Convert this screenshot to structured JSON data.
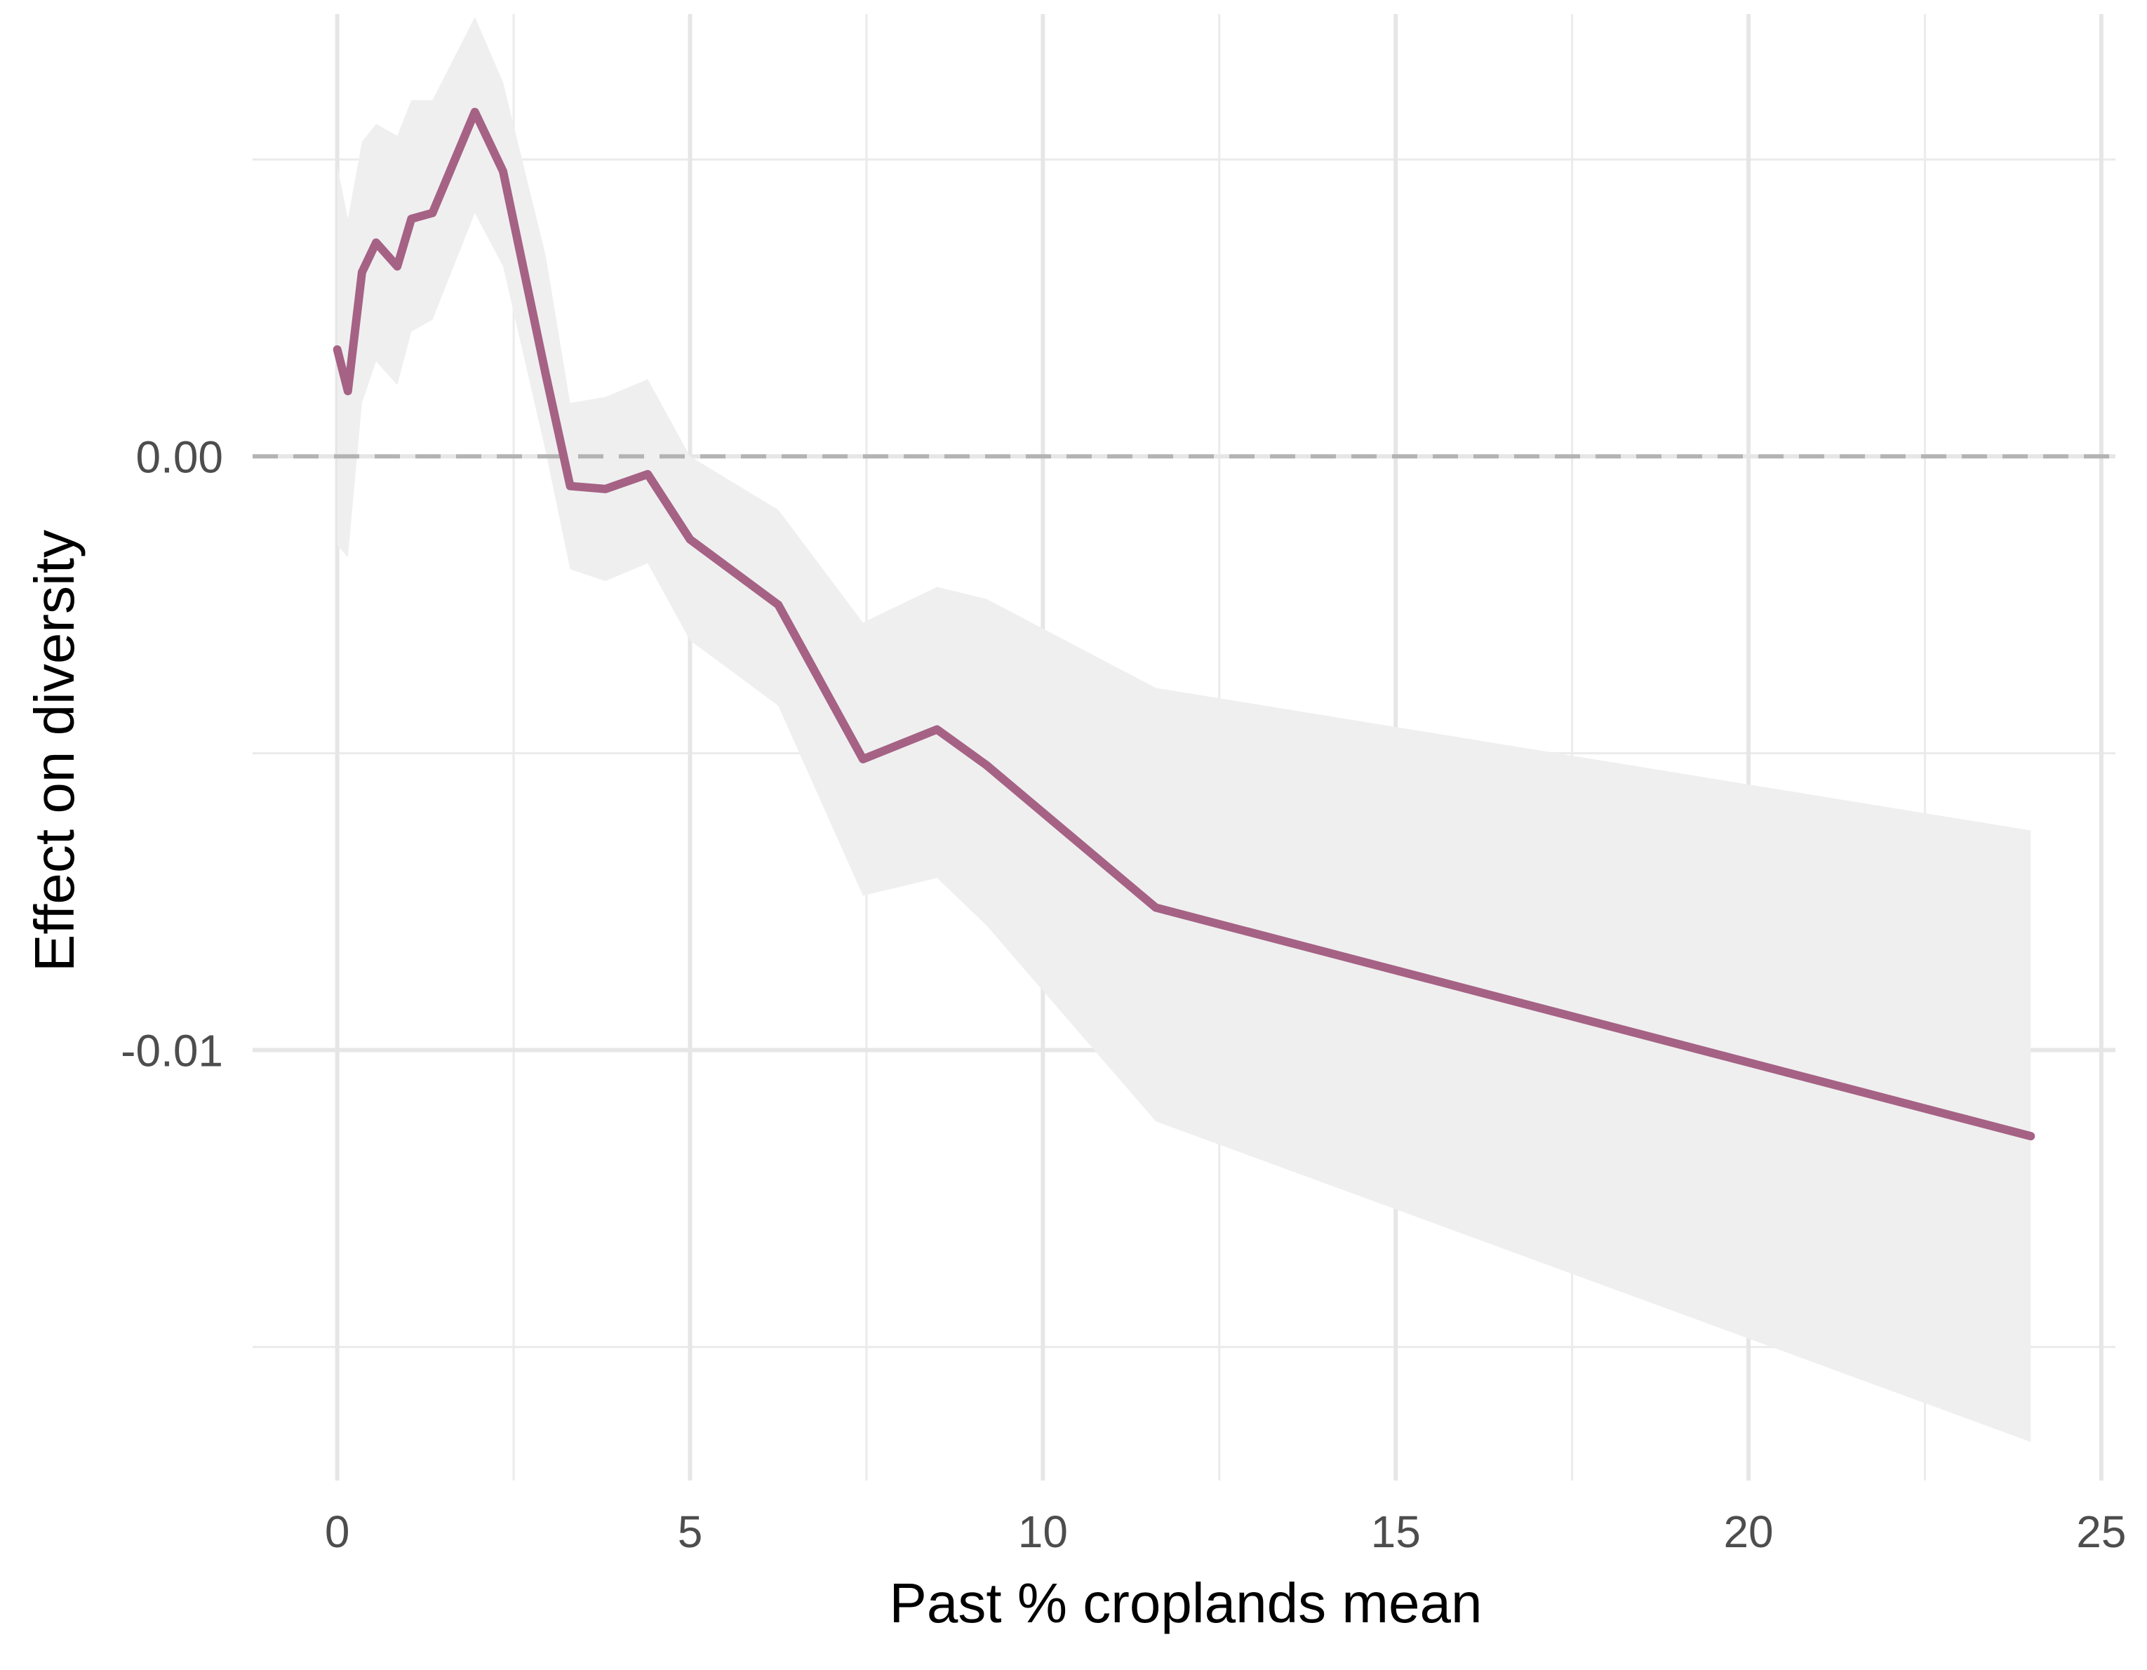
{
  "chart_data": {
    "type": "line",
    "title": "",
    "xlabel": "Past % croplands mean",
    "ylabel": "Effect on diversity",
    "xlim": [
      -1.2,
      25.2
    ],
    "ylim": [
      -0.01725,
      0.00745
    ],
    "x_ticks": [
      {
        "value": 0,
        "label": "0"
      },
      {
        "value": 5,
        "label": "5"
      },
      {
        "value": 10,
        "label": "10"
      },
      {
        "value": 15,
        "label": "15"
      },
      {
        "value": 20,
        "label": "20"
      },
      {
        "value": 25,
        "label": "25"
      }
    ],
    "y_ticks": [
      {
        "value": 0.0,
        "label": "0.00"
      },
      {
        "value": -0.01,
        "label": "-0.01"
      }
    ],
    "y_minor_gridlines": [
      0.005,
      -0.005,
      -0.015
    ],
    "x_minor_gridlines": [
      2.5,
      7.5,
      12.5,
      17.5,
      22.5
    ],
    "grid": true,
    "reference_line": {
      "y": 0,
      "style": "dashed",
      "color": "#b3b3b3"
    },
    "line_color": "#a56285",
    "ribbon_color": "#efefef",
    "series": [
      {
        "x": [
          0.0,
          0.15,
          0.35,
          0.55,
          0.85,
          1.05,
          1.35,
          1.95,
          2.35,
          2.95,
          3.3,
          3.8,
          4.4,
          5.0,
          6.25,
          7.45,
          8.5,
          9.2,
          11.6,
          24.0
        ],
        "y": [
          0.0018,
          0.0011,
          0.0031,
          0.0036,
          0.0032,
          0.004,
          0.0041,
          0.0058,
          0.0048,
          0.0014,
          -0.0005,
          -0.00055,
          -0.0003,
          -0.0014,
          -0.0025,
          -0.0051,
          -0.0046,
          -0.0052,
          -0.0076,
          -0.01145
        ],
        "lower": [
          -0.0015,
          -0.0017,
          0.0009,
          0.0016,
          0.0012,
          0.0021,
          0.0023,
          0.0041,
          0.0032,
          0.0001,
          -0.0019,
          -0.0021,
          -0.0018,
          -0.0031,
          -0.0042,
          -0.0074,
          -0.0071,
          -0.0079,
          -0.0112,
          -0.0166
        ],
        "upper": [
          0.0049,
          0.004,
          0.0053,
          0.0056,
          0.0054,
          0.006,
          0.006,
          0.0074,
          0.0063,
          0.0034,
          0.0009,
          0.001,
          0.0013,
          0.0,
          -0.0009,
          -0.0028,
          -0.0022,
          -0.0024,
          -0.0039,
          -0.0063
        ]
      }
    ]
  }
}
